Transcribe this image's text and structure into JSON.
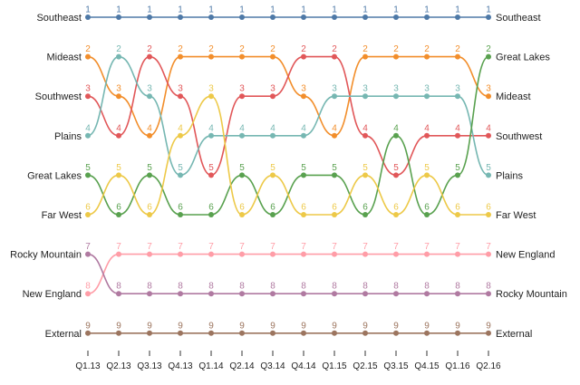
{
  "chart_data": {
    "type": "line",
    "subtype": "bump",
    "x": [
      "Q1.13",
      "Q2.13",
      "Q3.13",
      "Q4.13",
      "Q1.14",
      "Q2.14",
      "Q3.14",
      "Q4.14",
      "Q1.15",
      "Q2.15",
      "Q3.15",
      "Q4.15",
      "Q1.16",
      "Q2.16"
    ],
    "rank_range": [
      1,
      9
    ],
    "rank_direction": "rank 1 at top",
    "grid": false,
    "legend": "series names at both ends",
    "series": [
      {
        "name": "Southeast",
        "color": "#4e79a7",
        "values": [
          1,
          1,
          1,
          1,
          1,
          1,
          1,
          1,
          1,
          1,
          1,
          1,
          1,
          1
        ]
      },
      {
        "name": "Mideast",
        "color": "#f28e2b",
        "values": [
          2,
          3,
          4,
          2,
          2,
          2,
          2,
          3,
          4,
          2,
          2,
          2,
          2,
          3
        ]
      },
      {
        "name": "Southwest",
        "color": "#e15759",
        "values": [
          3,
          4,
          2,
          3,
          5,
          3,
          3,
          2,
          2,
          4,
          5,
          4,
          4,
          4
        ]
      },
      {
        "name": "Plains",
        "color": "#76b7b2",
        "values": [
          4,
          2,
          3,
          5,
          4,
          4,
          4,
          4,
          3,
          3,
          3,
          3,
          3,
          5
        ]
      },
      {
        "name": "Great Lakes",
        "color": "#59a14f",
        "values": [
          5,
          6,
          5,
          6,
          6,
          5,
          6,
          5,
          5,
          6,
          4,
          6,
          5,
          2
        ]
      },
      {
        "name": "Far West",
        "color": "#edc948",
        "values": [
          6,
          5,
          6,
          4,
          3,
          6,
          5,
          6,
          6,
          5,
          6,
          5,
          6,
          6
        ]
      },
      {
        "name": "New England",
        "color": "#ff9da7",
        "values": [
          8,
          7,
          7,
          7,
          7,
          7,
          7,
          7,
          7,
          7,
          7,
          7,
          7,
          7
        ]
      },
      {
        "name": "Rocky Mountain",
        "color": "#b07aa1",
        "values": [
          7,
          8,
          8,
          8,
          8,
          8,
          8,
          8,
          8,
          8,
          8,
          8,
          8,
          8
        ]
      },
      {
        "name": "External",
        "color": "#9c755f",
        "values": [
          9,
          9,
          9,
          9,
          9,
          9,
          9,
          9,
          9,
          9,
          9,
          9,
          9,
          9
        ]
      }
    ]
  }
}
